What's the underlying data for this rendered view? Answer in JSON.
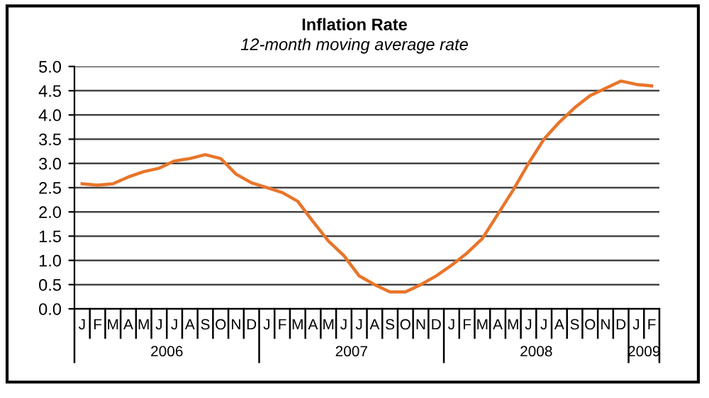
{
  "chart_data": {
    "type": "line",
    "title": "Inflation Rate",
    "subtitle": "12-month moving average rate",
    "categories": [
      "J",
      "F",
      "M",
      "A",
      "M",
      "J",
      "J",
      "A",
      "S",
      "O",
      "N",
      "D",
      "J",
      "F",
      "M",
      "A",
      "M",
      "J",
      "J",
      "A",
      "S",
      "O",
      "N",
      "D",
      "J",
      "F",
      "M",
      "A",
      "M",
      "J",
      "J",
      "A",
      "S",
      "O",
      "N",
      "D",
      "J",
      "F"
    ],
    "series": [
      {
        "color": "#e8752a",
        "values": [
          2.58,
          2.55,
          2.58,
          2.72,
          2.83,
          2.9,
          3.05,
          3.1,
          3.18,
          3.1,
          2.78,
          2.6,
          2.5,
          2.4,
          2.22,
          1.8,
          1.4,
          1.1,
          0.68,
          0.5,
          0.35,
          0.35,
          0.5,
          0.68,
          0.9,
          1.15,
          1.45,
          1.95,
          2.45,
          3.0,
          3.5,
          3.85,
          4.15,
          4.4,
          4.55,
          4.7,
          4.63,
          4.6
        ]
      }
    ],
    "annotations": [
      "2006",
      "2007",
      "2008",
      "2009"
    ],
    "ylim": [
      0,
      5
    ],
    "yticks": [
      {
        "value": 0,
        "label": "0.0"
      },
      {
        "value": 0.5,
        "label": "0.5"
      },
      {
        "value": 1,
        "label": "1.0"
      },
      {
        "value": 1.5,
        "label": "1.5"
      },
      {
        "value": 2,
        "label": "2.0"
      },
      {
        "value": 2.5,
        "label": "2.5"
      },
      {
        "value": 3,
        "label": "3.0"
      },
      {
        "value": 3.5,
        "label": "3.5"
      },
      {
        "value": 4,
        "label": "4.0"
      },
      {
        "value": 4.5,
        "label": "4.5"
      },
      {
        "value": 5,
        "label": "5.0"
      }
    ],
    "grid": "y",
    "marker": "none",
    "line_style": "solid"
  }
}
